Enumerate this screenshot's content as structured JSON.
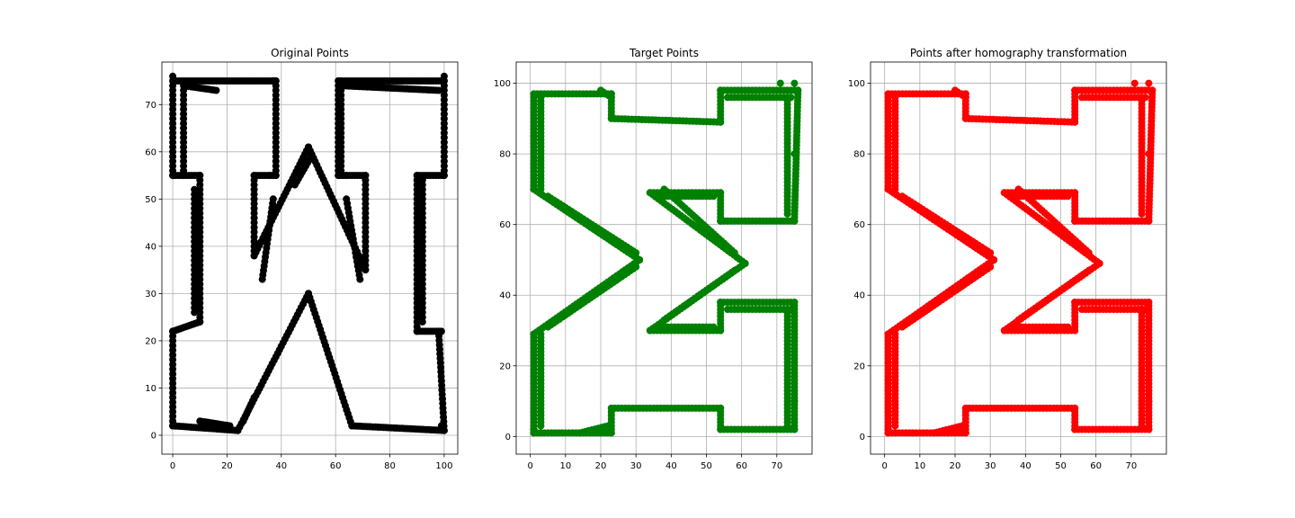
{
  "chart_data": [
    {
      "type": "scatter",
      "title": "Original Points",
      "color": "#000000",
      "xlim": [
        -4,
        105
      ],
      "ylim": [
        -4,
        79
      ],
      "xticks": [
        0,
        20,
        40,
        60,
        80,
        100
      ],
      "yticks": [
        0,
        10,
        20,
        30,
        40,
        50,
        60,
        70
      ],
      "grid": true,
      "strokes": [
        [
          [
            0,
            75
          ],
          [
            38,
            75
          ]
        ],
        [
          [
            0,
            74
          ],
          [
            0,
            55
          ]
        ],
        [
          [
            0,
            55
          ],
          [
            10,
            55
          ]
        ],
        [
          [
            10,
            55
          ],
          [
            10,
            24
          ]
        ],
        [
          [
            10,
            24
          ],
          [
            0,
            22
          ]
        ],
        [
          [
            0,
            22
          ],
          [
            0,
            2
          ]
        ],
        [
          [
            0,
            2
          ],
          [
            24,
            1
          ]
        ],
        [
          [
            24,
            1
          ],
          [
            50,
            30
          ]
        ],
        [
          [
            50,
            30
          ],
          [
            66,
            2
          ]
        ],
        [
          [
            66,
            2
          ],
          [
            100,
            1
          ]
        ],
        [
          [
            100,
            1
          ],
          [
            98,
            22
          ]
        ],
        [
          [
            98,
            22
          ],
          [
            90,
            22
          ]
        ],
        [
          [
            90,
            22
          ],
          [
            90,
            55
          ]
        ],
        [
          [
            90,
            55
          ],
          [
            100,
            55
          ]
        ],
        [
          [
            100,
            55
          ],
          [
            100,
            75
          ]
        ],
        [
          [
            100,
            75
          ],
          [
            61,
            75
          ]
        ],
        [
          [
            61,
            75
          ],
          [
            61,
            55
          ]
        ],
        [
          [
            61,
            55
          ],
          [
            71,
            55
          ]
        ],
        [
          [
            71,
            55
          ],
          [
            71,
            35
          ]
        ],
        [
          [
            71,
            35
          ],
          [
            50,
            61
          ]
        ],
        [
          [
            50,
            61
          ],
          [
            30,
            38
          ]
        ],
        [
          [
            30,
            38
          ],
          [
            30,
            55
          ]
        ],
        [
          [
            30,
            55
          ],
          [
            38,
            55
          ]
        ],
        [
          [
            38,
            55
          ],
          [
            38,
            75
          ]
        ],
        [
          [
            4,
            73
          ],
          [
            4,
            55
          ]
        ],
        [
          [
            4,
            74
          ],
          [
            16,
            73
          ]
        ],
        [
          [
            62,
            73
          ],
          [
            62,
            56
          ]
        ],
        [
          [
            62,
            74
          ],
          [
            98,
            73
          ]
        ],
        [
          [
            33,
            33
          ],
          [
            37,
            50
          ]
        ],
        [
          [
            69,
            33
          ],
          [
            64,
            50
          ]
        ],
        [
          [
            21,
            2
          ],
          [
            10,
            3
          ]
        ],
        [
          [
            92,
            54
          ],
          [
            92,
            24
          ]
        ],
        [
          [
            8,
            52
          ],
          [
            8,
            26
          ]
        ],
        [
          [
            26,
            3
          ],
          [
            30,
            8
          ]
        ],
        [
          [
            45,
            53
          ],
          [
            51,
            59
          ]
        ]
      ],
      "blobs": [
        [
          0,
          76
        ],
        [
          100,
          76
        ],
        [
          37,
          75
        ],
        [
          62,
          75
        ],
        [
          1,
          2
        ],
        [
          99,
          2
        ],
        [
          50,
          30
        ],
        [
          50,
          61
        ],
        [
          36,
          55
        ],
        [
          64,
          55
        ],
        [
          0,
          22
        ],
        [
          99,
          22
        ]
      ]
    },
    {
      "type": "scatter",
      "title": "Target Points",
      "color": "#008000",
      "xlim": [
        -4,
        80
      ],
      "ylim": [
        -5,
        106
      ],
      "xticks": [
        0,
        10,
        20,
        30,
        40,
        50,
        60,
        70
      ],
      "yticks": [
        0,
        20,
        40,
        60,
        80,
        100
      ],
      "grid": true,
      "strokes": [
        [
          [
            1,
            97
          ],
          [
            1,
            70
          ]
        ],
        [
          [
            1,
            97
          ],
          [
            23,
            97
          ]
        ],
        [
          [
            23,
            97
          ],
          [
            23,
            90
          ]
        ],
        [
          [
            23,
            90
          ],
          [
            54,
            89
          ]
        ],
        [
          [
            54,
            89
          ],
          [
            54,
            98
          ]
        ],
        [
          [
            54,
            98
          ],
          [
            76,
            98
          ]
        ],
        [
          [
            76,
            98
          ],
          [
            75,
            61
          ]
        ],
        [
          [
            75,
            61
          ],
          [
            54,
            61
          ]
        ],
        [
          [
            54,
            61
          ],
          [
            54,
            69
          ]
        ],
        [
          [
            54,
            69
          ],
          [
            34,
            69
          ]
        ],
        [
          [
            34,
            69
          ],
          [
            61,
            49
          ]
        ],
        [
          [
            61,
            49
          ],
          [
            34,
            30
          ]
        ],
        [
          [
            34,
            30
          ],
          [
            54,
            30
          ]
        ],
        [
          [
            54,
            30
          ],
          [
            54,
            38
          ]
        ],
        [
          [
            54,
            38
          ],
          [
            75,
            38
          ]
        ],
        [
          [
            75,
            38
          ],
          [
            75,
            2
          ]
        ],
        [
          [
            75,
            2
          ],
          [
            54,
            2
          ]
        ],
        [
          [
            54,
            2
          ],
          [
            54,
            8
          ]
        ],
        [
          [
            54,
            8
          ],
          [
            23,
            8
          ]
        ],
        [
          [
            23,
            8
          ],
          [
            23,
            1
          ]
        ],
        [
          [
            23,
            1
          ],
          [
            1,
            1
          ]
        ],
        [
          [
            1,
            1
          ],
          [
            1,
            29
          ]
        ],
        [
          [
            1,
            29
          ],
          [
            31,
            50
          ]
        ],
        [
          [
            31,
            50
          ],
          [
            1,
            70
          ]
        ],
        [
          [
            3,
            96
          ],
          [
            3,
            70
          ]
        ],
        [
          [
            3,
            29
          ],
          [
            3,
            3
          ]
        ],
        [
          [
            73,
            96
          ],
          [
            73,
            63
          ]
        ],
        [
          [
            73,
            36
          ],
          [
            73,
            3
          ]
        ],
        [
          [
            5,
            68
          ],
          [
            30,
            52
          ]
        ],
        [
          [
            5,
            31
          ],
          [
            30,
            48
          ]
        ],
        [
          [
            38,
            70
          ],
          [
            58,
            52
          ]
        ],
        [
          [
            38,
            33
          ],
          [
            58,
            47
          ]
        ],
        [
          [
            56,
            96
          ],
          [
            74,
            96
          ]
        ],
        [
          [
            56,
            36
          ],
          [
            74,
            36
          ]
        ],
        [
          [
            36,
            68
          ],
          [
            52,
            68
          ]
        ],
        [
          [
            36,
            31
          ],
          [
            52,
            31
          ]
        ],
        [
          [
            23,
            96
          ],
          [
            20,
            98
          ]
        ],
        [
          [
            22,
            3
          ],
          [
            14,
            1
          ]
        ]
      ],
      "blobs": [
        [
          75,
          100
        ],
        [
          71,
          100
        ],
        [
          1,
          85
        ],
        [
          75,
          80
        ],
        [
          1,
          70
        ],
        [
          31,
          50
        ],
        [
          61,
          49
        ],
        [
          1,
          29
        ],
        [
          75,
          10
        ],
        [
          1,
          2
        ],
        [
          23,
          97
        ],
        [
          54,
          98
        ],
        [
          54,
          61
        ],
        [
          54,
          38
        ],
        [
          54,
          8
        ]
      ]
    },
    {
      "type": "scatter",
      "title": "Points after homography transformation",
      "color": "#ff0000",
      "xlim": [
        -4,
        80
      ],
      "ylim": [
        -5,
        106
      ],
      "xticks": [
        0,
        10,
        20,
        30,
        40,
        50,
        60,
        70
      ],
      "yticks": [
        0,
        20,
        40,
        60,
        80,
        100
      ],
      "grid": true,
      "strokes": [
        [
          [
            1,
            97
          ],
          [
            1,
            70
          ]
        ],
        [
          [
            1,
            97
          ],
          [
            23,
            97
          ]
        ],
        [
          [
            23,
            97
          ],
          [
            23,
            90
          ]
        ],
        [
          [
            23,
            90
          ],
          [
            54,
            89
          ]
        ],
        [
          [
            54,
            89
          ],
          [
            54,
            98
          ]
        ],
        [
          [
            54,
            98
          ],
          [
            76,
            98
          ]
        ],
        [
          [
            76,
            98
          ],
          [
            75,
            61
          ]
        ],
        [
          [
            75,
            61
          ],
          [
            54,
            61
          ]
        ],
        [
          [
            54,
            61
          ],
          [
            54,
            69
          ]
        ],
        [
          [
            54,
            69
          ],
          [
            34,
            69
          ]
        ],
        [
          [
            34,
            69
          ],
          [
            61,
            49
          ]
        ],
        [
          [
            61,
            49
          ],
          [
            34,
            30
          ]
        ],
        [
          [
            34,
            30
          ],
          [
            54,
            30
          ]
        ],
        [
          [
            54,
            30
          ],
          [
            54,
            38
          ]
        ],
        [
          [
            54,
            38
          ],
          [
            75,
            38
          ]
        ],
        [
          [
            75,
            38
          ],
          [
            75,
            2
          ]
        ],
        [
          [
            75,
            2
          ],
          [
            54,
            2
          ]
        ],
        [
          [
            54,
            2
          ],
          [
            54,
            8
          ]
        ],
        [
          [
            54,
            8
          ],
          [
            23,
            8
          ]
        ],
        [
          [
            23,
            8
          ],
          [
            23,
            1
          ]
        ],
        [
          [
            23,
            1
          ],
          [
            1,
            1
          ]
        ],
        [
          [
            1,
            1
          ],
          [
            1,
            29
          ]
        ],
        [
          [
            1,
            29
          ],
          [
            31,
            50
          ]
        ],
        [
          [
            31,
            50
          ],
          [
            1,
            70
          ]
        ],
        [
          [
            3,
            96
          ],
          [
            3,
            70
          ]
        ],
        [
          [
            3,
            29
          ],
          [
            3,
            3
          ]
        ],
        [
          [
            73,
            96
          ],
          [
            73,
            63
          ]
        ],
        [
          [
            73,
            36
          ],
          [
            73,
            3
          ]
        ],
        [
          [
            5,
            68
          ],
          [
            30,
            52
          ]
        ],
        [
          [
            5,
            31
          ],
          [
            30,
            48
          ]
        ],
        [
          [
            38,
            70
          ],
          [
            58,
            52
          ]
        ],
        [
          [
            38,
            33
          ],
          [
            58,
            47
          ]
        ],
        [
          [
            56,
            96
          ],
          [
            74,
            96
          ]
        ],
        [
          [
            56,
            36
          ],
          [
            74,
            36
          ]
        ],
        [
          [
            36,
            68
          ],
          [
            52,
            68
          ]
        ],
        [
          [
            36,
            31
          ],
          [
            52,
            31
          ]
        ],
        [
          [
            23,
            96
          ],
          [
            20,
            98
          ]
        ],
        [
          [
            22,
            3
          ],
          [
            14,
            1
          ]
        ]
      ],
      "blobs": [
        [
          75,
          100
        ],
        [
          71,
          100
        ],
        [
          1,
          85
        ],
        [
          75,
          80
        ],
        [
          1,
          70
        ],
        [
          31,
          50
        ],
        [
          61,
          49
        ],
        [
          1,
          29
        ],
        [
          75,
          10
        ],
        [
          1,
          2
        ],
        [
          23,
          97
        ],
        [
          54,
          98
        ],
        [
          54,
          61
        ],
        [
          54,
          38
        ],
        [
          54,
          8
        ]
      ]
    }
  ]
}
